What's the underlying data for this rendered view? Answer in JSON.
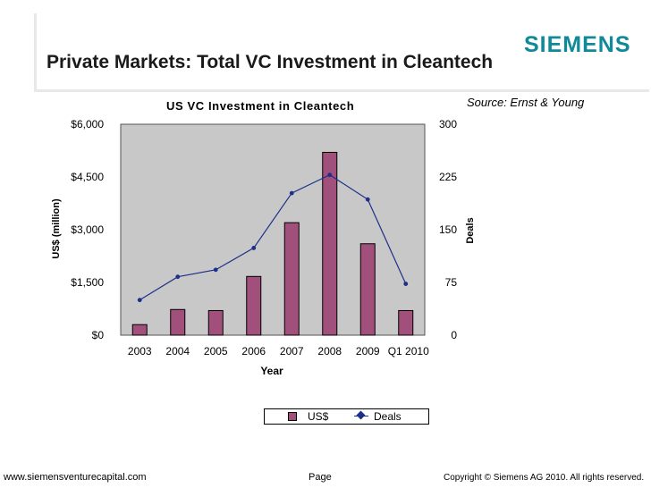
{
  "header": {
    "logo": "SIEMENS",
    "title": "Private Markets: Total VC Investment in Cleantech"
  },
  "source": "Source: Ernst & Young",
  "legend": {
    "series1": "US$",
    "series2": "Deals"
  },
  "footer": {
    "url": "www.siemensventurecapital.com",
    "page": "Page",
    "copyright": "Copyright © Siemens AG 2010. All rights reserved."
  },
  "colors": {
    "bar": "#a0507a",
    "line": "#1d2f8a",
    "plot_bg": "#c8c8c8",
    "logo": "#0f8a9a"
  },
  "chart_data": {
    "type": "bar",
    "title": "US VC Investment in Cleantech",
    "xlabel": "Year",
    "ylabel": "US$ (million)",
    "y2label": "Deals",
    "categories": [
      "2003",
      "2004",
      "2005",
      "2006",
      "2007",
      "2008",
      "2009",
      "Q1 2010"
    ],
    "series": [
      {
        "name": "US$",
        "type": "bar",
        "axis": "left",
        "values": [
          300,
          730,
          700,
          1670,
          3200,
          5200,
          2600,
          700
        ]
      },
      {
        "name": "Deals",
        "type": "line",
        "axis": "right",
        "values": [
          50,
          83,
          93,
          124,
          202,
          228,
          193,
          73
        ]
      }
    ],
    "ylim": [
      0,
      6000
    ],
    "y2lim": [
      0,
      300
    ],
    "yticks": [
      "$0",
      "$1,500",
      "$3,000",
      "$4,500",
      "$6,000"
    ],
    "y2ticks": [
      "0",
      "75",
      "150",
      "225",
      "300"
    ],
    "grid": false,
    "legend_position": "bottom-right"
  }
}
